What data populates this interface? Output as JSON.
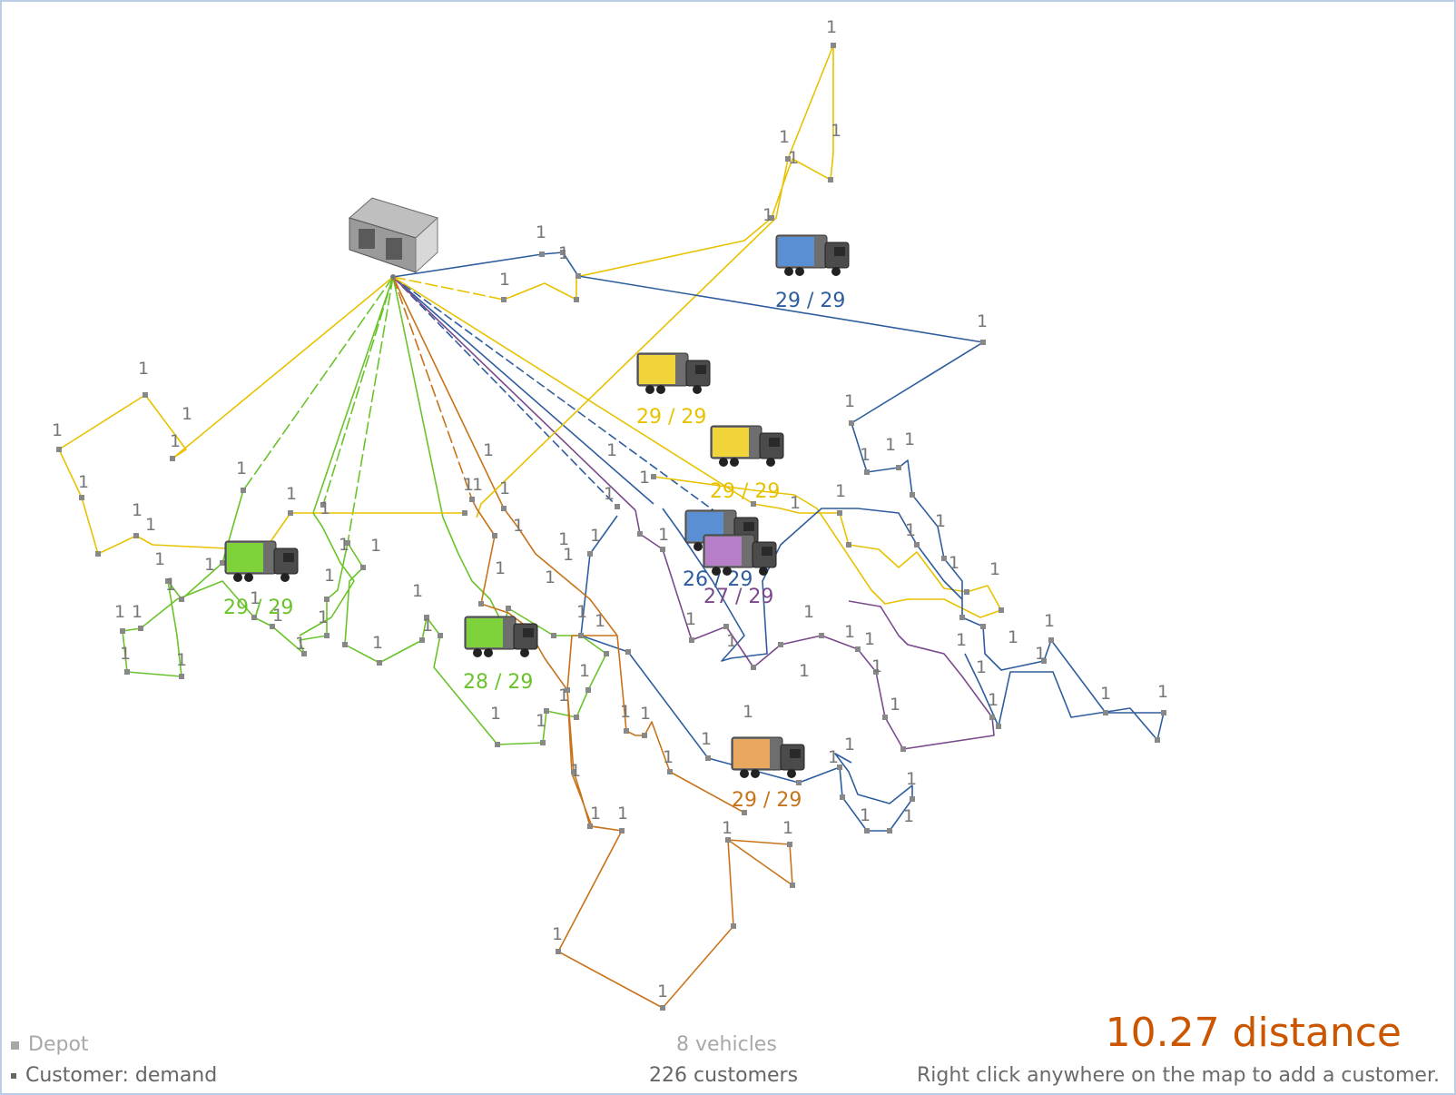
{
  "app": {
    "name": "Vehicle routing map"
  },
  "legend": {
    "depot_label": "Depot",
    "customer_label": "Customer: demand"
  },
  "summary": {
    "vehicles_text": "8 vehicles",
    "customers_text": "226 customers",
    "distance_text": "10.27 distance",
    "hint_text": "Right click anywhere on the map to add a customer."
  },
  "colors": {
    "frame_border": "#b9cde6",
    "distance": "#cc5500",
    "depot_label": "#a8a8a8",
    "customer_point": "#666666"
  },
  "customer_demand_label": "1",
  "depot": {
    "icon": "depot-building-icon"
  },
  "vehicles": [
    {
      "name": "blue-route-1",
      "color": "#2e5d9e",
      "body_color": "#5b8fd3",
      "load_text": "29 / 29"
    },
    {
      "name": "yellow-route-1",
      "color": "#e8c200",
      "body_color": "#f0d43a",
      "load_text": "29 / 29"
    },
    {
      "name": "yellow-route-2",
      "color": "#e8c200",
      "body_color": "#f0d43a",
      "load_text": "29 / 29"
    },
    {
      "name": "blue-route-2",
      "color": "#2e5d9e",
      "body_color": "#5b8fd3",
      "load_text": "26 / 29"
    },
    {
      "name": "purple-route",
      "color": "#7b4a8c",
      "body_color": "#b67fc8",
      "load_text": "27 / 29"
    },
    {
      "name": "green-route-1",
      "color": "#6ac32a",
      "body_color": "#7fd33a",
      "load_text": "29 / 29"
    },
    {
      "name": "green-route-2",
      "color": "#6ac32a",
      "body_color": "#7fd33a",
      "load_text": "28 / 29"
    },
    {
      "name": "orange-route",
      "color": "#c8731a",
      "body_color": "#e8a860",
      "load_text": "29 / 29"
    }
  ]
}
